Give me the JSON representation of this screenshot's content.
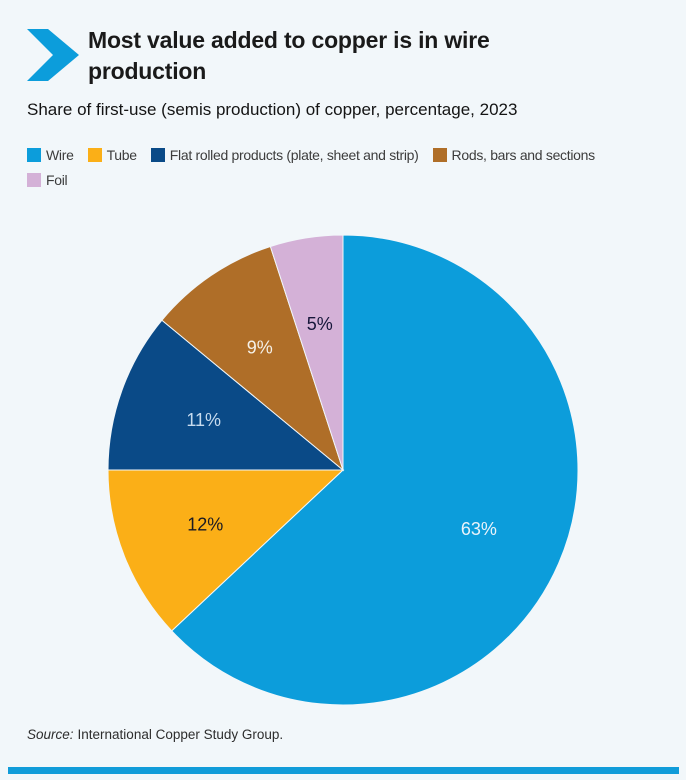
{
  "colors": {
    "background": "#F2F7FA",
    "accent_blue": "#0C9DDB",
    "title_text": "#1A1A1A",
    "legend_text": "#3C3C3C",
    "footer_bar": "#119CD9"
  },
  "header": {
    "title": "Most value added to copper is in wire production",
    "subtitle": "Share of first-use (semis production) of copper, percentage, 2023"
  },
  "chart_data": {
    "type": "pie",
    "title": "Most value added to copper is in wire production",
    "subtitle": "Share of first-use (semis production) of copper, percentage, 2023",
    "unit": "percentage",
    "year": "2023",
    "labels": [
      "Wire",
      "Tube",
      "Flat rolled products (plate, sheet and strip)",
      "Rods, bars and sections",
      "Foil"
    ],
    "slice_names": [
      "wire",
      "tube",
      "flat-rolled-products",
      "rods-bars-sections",
      "foil"
    ],
    "values": [
      63,
      12,
      11,
      9,
      5
    ],
    "data_labels": [
      "63%",
      "12%",
      "11%",
      "9%",
      "5%"
    ],
    "colors": [
      "#0C9DDB",
      "#FBAF17",
      "#0A4A87",
      "#AF6E28",
      "#D4B1D7"
    ],
    "label_colors": [
      "#EAF3FA",
      "#1A1A24",
      "#C7DBEE",
      "#F5F1E9",
      "#16163A"
    ],
    "start_angle_deg": 0,
    "direction": "clockwise",
    "legend_position": "top",
    "slice_border_color": "#F2F7FA",
    "label_radius_ratio": 0.63
  },
  "legend": {
    "rows": [
      [
        0,
        1,
        2,
        3
      ],
      [
        4
      ]
    ]
  },
  "source": {
    "label": "Source:",
    "text": "International Copper Study Group."
  }
}
